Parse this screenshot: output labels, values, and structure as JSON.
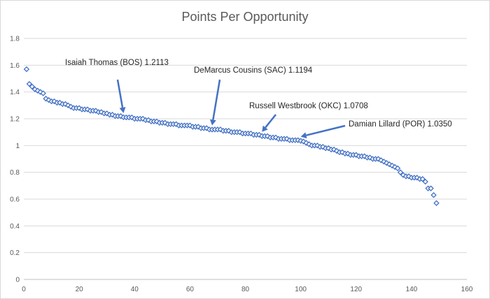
{
  "chart_data": {
    "type": "scatter",
    "title": "Points Per Opportunity",
    "xlim": [
      0,
      160
    ],
    "ylim": [
      0,
      1.8
    ],
    "x_ticks": [
      0,
      20,
      40,
      60,
      80,
      100,
      120,
      140,
      160
    ],
    "y_ticks": [
      0,
      0.2,
      0.4,
      0.6,
      0.8,
      1,
      1.2,
      1.4,
      1.6,
      1.8
    ],
    "y_tick_labels": [
      "0",
      "0.2",
      "0.4",
      "0.6",
      "0.8",
      "1",
      "1.2",
      "1.4",
      "1.6",
      "1.8"
    ],
    "grid": "horizontal",
    "marker_color": "#4472c4",
    "values": [
      1.57,
      1.46,
      1.44,
      1.42,
      1.41,
      1.4,
      1.39,
      1.35,
      1.34,
      1.33,
      1.33,
      1.32,
      1.32,
      1.31,
      1.31,
      1.3,
      1.29,
      1.28,
      1.28,
      1.28,
      1.27,
      1.27,
      1.27,
      1.26,
      1.26,
      1.26,
      1.25,
      1.25,
      1.24,
      1.24,
      1.23,
      1.23,
      1.22,
      1.22,
      1.22,
      1.2113,
      1.21,
      1.21,
      1.21,
      1.2,
      1.2,
      1.2,
      1.2,
      1.19,
      1.19,
      1.18,
      1.18,
      1.18,
      1.17,
      1.17,
      1.17,
      1.16,
      1.16,
      1.16,
      1.16,
      1.15,
      1.15,
      1.15,
      1.15,
      1.15,
      1.14,
      1.14,
      1.14,
      1.13,
      1.13,
      1.13,
      1.12,
      1.1194,
      1.12,
      1.12,
      1.12,
      1.11,
      1.11,
      1.11,
      1.1,
      1.1,
      1.1,
      1.1,
      1.09,
      1.09,
      1.09,
      1.09,
      1.08,
      1.08,
      1.08,
      1.0708,
      1.07,
      1.07,
      1.06,
      1.06,
      1.06,
      1.05,
      1.05,
      1.05,
      1.05,
      1.04,
      1.04,
      1.04,
      1.04,
      1.035,
      1.03,
      1.02,
      1.01,
      1.0,
      1.0,
      1.0,
      0.99,
      0.99,
      0.98,
      0.98,
      0.97,
      0.97,
      0.96,
      0.95,
      0.95,
      0.94,
      0.94,
      0.93,
      0.93,
      0.93,
      0.92,
      0.92,
      0.92,
      0.91,
      0.91,
      0.9,
      0.9,
      0.9,
      0.89,
      0.88,
      0.87,
      0.86,
      0.85,
      0.84,
      0.83,
      0.8,
      0.78,
      0.77,
      0.77,
      0.76,
      0.76,
      0.76,
      0.75,
      0.75,
      0.73,
      0.68,
      0.68,
      0.63,
      0.57
    ],
    "annotations": [
      {
        "label": "Isaiah Thomas (BOS) 1.2113",
        "x": 36,
        "y": 1.2113
      },
      {
        "label": "DeMarcus Cousins (SAC) 1.1194",
        "x": 68,
        "y": 1.1194
      },
      {
        "label": "Russell Westbrook (OKC) 1.0708",
        "x": 86,
        "y": 1.0708
      },
      {
        "label": "Damian Lillard (POR) 1.0350",
        "x": 100,
        "y": 1.035
      }
    ]
  }
}
